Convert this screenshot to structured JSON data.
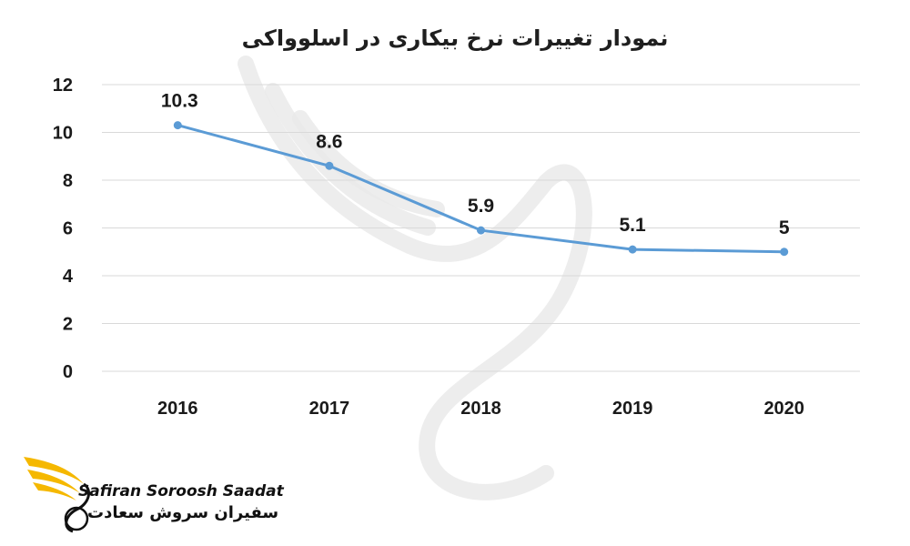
{
  "chart_data": {
    "type": "line",
    "title": "نمودار تغییرات نرخ بیکاری در اسلوواکی",
    "xlabel": "",
    "ylabel": "",
    "categories": [
      "2016",
      "2017",
      "2018",
      "2019",
      "2020"
    ],
    "series": [
      {
        "values": [
          10.3,
          8.6,
          5.9,
          5.1,
          5.0
        ],
        "labels": [
          "10.3",
          "8.6",
          "5.9",
          "5.1",
          "5"
        ]
      }
    ],
    "ylim": [
      0,
      12
    ],
    "yticks": [
      "0",
      "2",
      "4",
      "6",
      "8",
      "10",
      "12"
    ],
    "grid": true,
    "legend": "none",
    "line_color": "#5b9bd5"
  },
  "brand": {
    "name_en": "Safiran Soroosh Saadat",
    "name_fa": "سفیران سروش سعادت",
    "accent_color": "#f5b800"
  }
}
